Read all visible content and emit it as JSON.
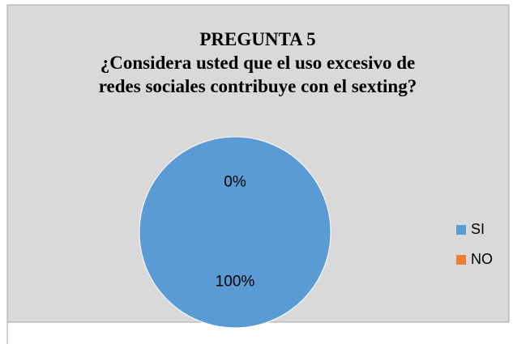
{
  "chart_data": {
    "type": "pie",
    "title": [
      "PREGUNTA 5",
      "¿Considera usted  que el uso excesivo de",
      "redes sociales contribuye con el sexting?"
    ],
    "categories": [
      "SI",
      "NO"
    ],
    "values": [
      100,
      0
    ],
    "value_labels": [
      "100%",
      "0%"
    ],
    "colors": [
      "#5b9bd5",
      "#ed7d31"
    ],
    "legend": "right"
  }
}
